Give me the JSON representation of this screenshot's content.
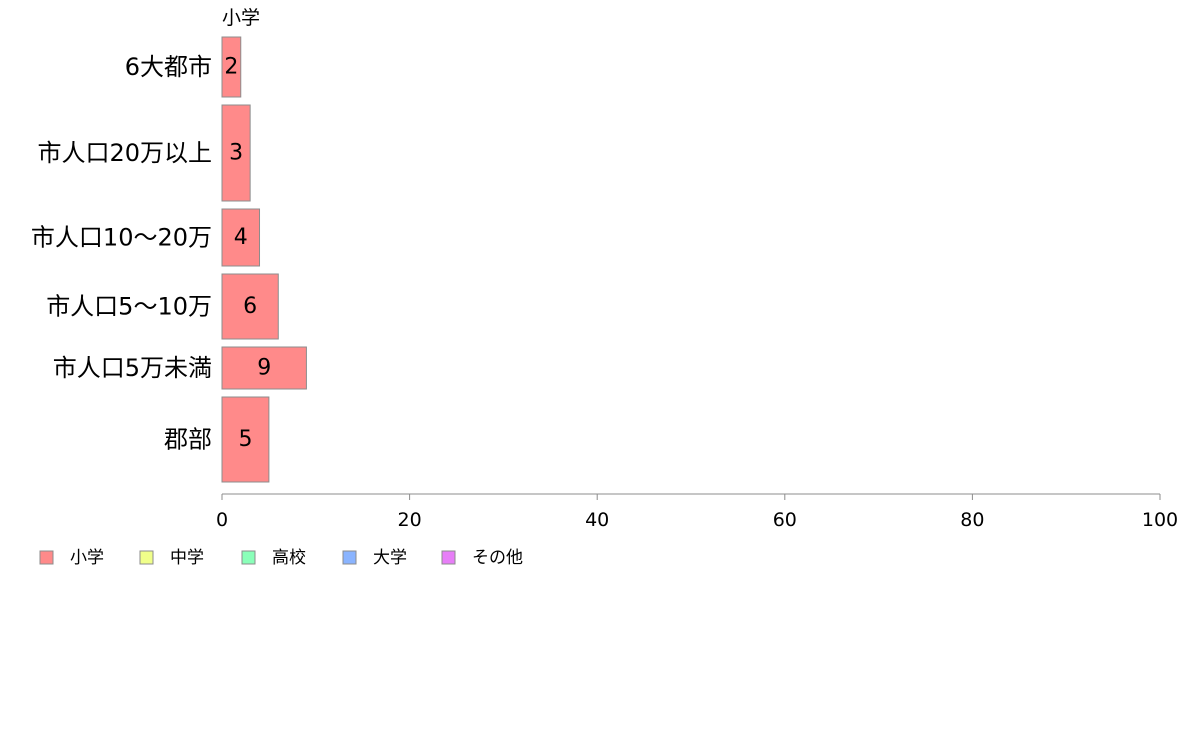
{
  "chart_data": {
    "type": "bar",
    "orientation": "horizontal",
    "title": "小学",
    "categories": [
      "6大都市",
      "市人口20万以上",
      "市人口10〜20万",
      "市人口5〜10万",
      "市人口5万未満",
      "郡部"
    ],
    "values": [
      2,
      3,
      4,
      6,
      9,
      5
    ],
    "bar_color": "#ff8a8a",
    "bar_stroke": "#8c8c8c",
    "xlim": [
      0,
      100
    ],
    "xticks": [
      0,
      20,
      40,
      60,
      80,
      100
    ],
    "xlabel": "",
    "ylabel": "",
    "grid": false,
    "legend": {
      "position": "bottom-left",
      "entries": [
        {
          "label": "小学",
          "color": "#ff8a8a"
        },
        {
          "label": "中学",
          "color": "#f0ff8a"
        },
        {
          "label": "高校",
          "color": "#8affb9"
        },
        {
          "label": "大学",
          "color": "#8ab4ff"
        },
        {
          "label": "その他",
          "color": "#e77ef7"
        }
      ]
    }
  }
}
